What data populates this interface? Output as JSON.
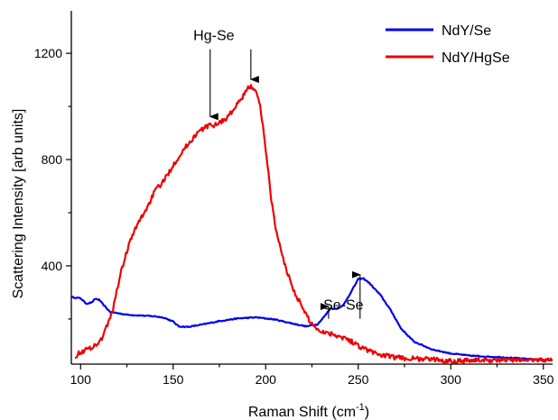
{
  "chart_data": {
    "type": "line",
    "title": "",
    "xlabel": "Raman Shift (cm",
    "xlabel_sup": "-1",
    "xlabel_close": ")",
    "ylabel": "Scattering Intensity [arb  units]",
    "xlim": [
      95,
      355
    ],
    "ylim": [
      30,
      1360
    ],
    "xticks": [
      100,
      150,
      200,
      250,
      300,
      350
    ],
    "yticks": [
      400,
      800,
      1200
    ],
    "x_minor_step": 25,
    "y_minor_step": 200,
    "grid": false,
    "legend_position": "top-right",
    "series": [
      {
        "name": "NdY/Se",
        "color": "#0000ee",
        "noise": 2,
        "points": [
          [
            95,
            282
          ],
          [
            100,
            278
          ],
          [
            103,
            258
          ],
          [
            106,
            262
          ],
          [
            108,
            276
          ],
          [
            110,
            272
          ],
          [
            113,
            248
          ],
          [
            116,
            226
          ],
          [
            120,
            222
          ],
          [
            125,
            216
          ],
          [
            130,
            214
          ],
          [
            135,
            212
          ],
          [
            140,
            210
          ],
          [
            145,
            205
          ],
          [
            150,
            190
          ],
          [
            153,
            172
          ],
          [
            158,
            170
          ],
          [
            165,
            178
          ],
          [
            175,
            192
          ],
          [
            185,
            202
          ],
          [
            195,
            206
          ],
          [
            205,
            198
          ],
          [
            215,
            182
          ],
          [
            222,
            172
          ],
          [
            228,
            180
          ],
          [
            232,
            212
          ],
          [
            235,
            240
          ],
          [
            238,
            238
          ],
          [
            242,
            252
          ],
          [
            246,
            300
          ],
          [
            250,
            350
          ],
          [
            253,
            352
          ],
          [
            256,
            335
          ],
          [
            262,
            290
          ],
          [
            268,
            228
          ],
          [
            273,
            165
          ],
          [
            280,
            115
          ],
          [
            290,
            85
          ],
          [
            300,
            70
          ],
          [
            310,
            62
          ],
          [
            320,
            58
          ],
          [
            330,
            55
          ],
          [
            340,
            50
          ],
          [
            355,
            44
          ]
        ]
      },
      {
        "name": "NdY/HgSe",
        "color": "#ee0000",
        "noise": 9,
        "points": [
          [
            97,
            60
          ],
          [
            100,
            75
          ],
          [
            105,
            90
          ],
          [
            110,
            110
          ],
          [
            113,
            150
          ],
          [
            115,
            190
          ],
          [
            117,
            220
          ],
          [
            119,
            290
          ],
          [
            122,
            380
          ],
          [
            126,
            480
          ],
          [
            131,
            560
          ],
          [
            136,
            620
          ],
          [
            140,
            680
          ],
          [
            145,
            720
          ],
          [
            150,
            780
          ],
          [
            156,
            840
          ],
          [
            163,
            900
          ],
          [
            168,
            925
          ],
          [
            172,
            930
          ],
          [
            178,
            950
          ],
          [
            183,
            990
          ],
          [
            188,
            1040
          ],
          [
            191,
            1075
          ],
          [
            194,
            1070
          ],
          [
            197,
            1000
          ],
          [
            199,
            900
          ],
          [
            201,
            780
          ],
          [
            203,
            650
          ],
          [
            206,
            520
          ],
          [
            210,
            410
          ],
          [
            215,
            310
          ],
          [
            220,
            240
          ],
          [
            224,
            190
          ],
          [
            228,
            160
          ],
          [
            232,
            150
          ],
          [
            238,
            140
          ],
          [
            244,
            125
          ],
          [
            250,
            100
          ],
          [
            256,
            80
          ],
          [
            262,
            65
          ],
          [
            270,
            55
          ],
          [
            280,
            50
          ],
          [
            290,
            48
          ],
          [
            300,
            42
          ],
          [
            310,
            45
          ],
          [
            320,
            45
          ],
          [
            330,
            45
          ],
          [
            340,
            45
          ],
          [
            350,
            46
          ],
          [
            355,
            45
          ]
        ]
      }
    ],
    "annotations": [
      {
        "label": "Hg-Se",
        "label_x": 172,
        "label_y": 1270,
        "arrows": [
          {
            "x": 170,
            "y_from": 1215,
            "y_to": 955
          },
          {
            "x": 192,
            "y_from": 1215,
            "y_to": 1095
          }
        ]
      },
      {
        "label": "Se-Se",
        "label_x": 242,
        "label_y": 255,
        "arrows": [
          {
            "x": 234,
            "y_from": 235,
            "y_to": 240,
            "y_start": 690
          },
          {
            "x": 251,
            "y_from": 690,
            "y_to": 360
          }
        ]
      }
    ]
  }
}
